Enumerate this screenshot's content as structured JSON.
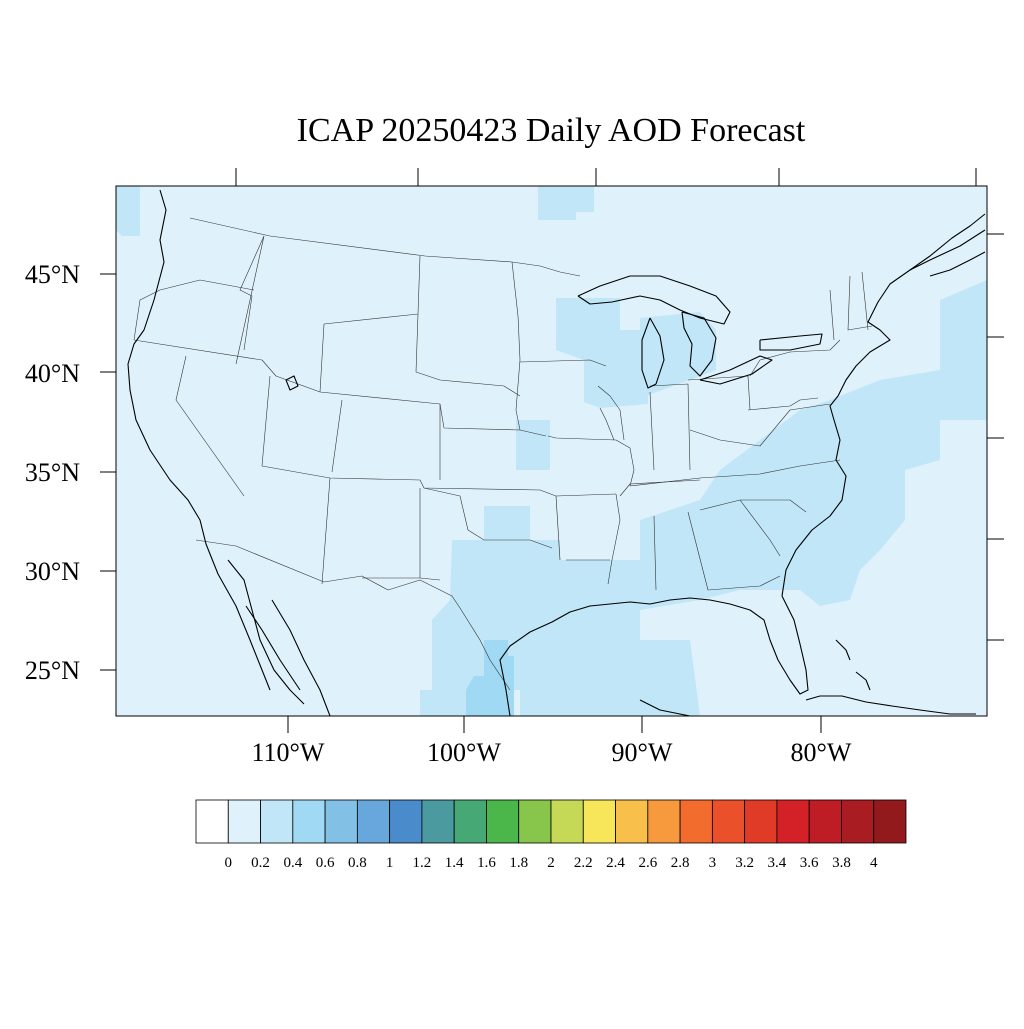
{
  "title": "ICAP 20250423 Daily AOD Forecast",
  "colors": {
    "background_sea": "#dff2fb",
    "aod_0_2_0_4": "#c0e6f7",
    "aod_0_4_0_6": "#9fd9f3"
  },
  "axes": {
    "lat_labels": [
      "45°N",
      "40°N",
      "35°N",
      "30°N",
      "25°N"
    ],
    "lon_labels": [
      "110°W",
      "100°W",
      "90°W",
      "80°W"
    ]
  },
  "colorbar": {
    "labels": [
      "0",
      "0.2",
      "0.4",
      "0.6",
      "0.8",
      "1",
      "1.2",
      "1.4",
      "1.6",
      "1.8",
      "2",
      "2.2",
      "2.4",
      "2.6",
      "2.8",
      "3",
      "3.2",
      "3.4",
      "3.6",
      "3.8",
      "4"
    ],
    "colors": [
      "#ffffff",
      "#dff2fb",
      "#c0e6f7",
      "#9fd9f3",
      "#82c0e6",
      "#68a7db",
      "#4a8ccb",
      "#4a9a9f",
      "#46a874",
      "#4bb74a",
      "#87c64a",
      "#c6d957",
      "#f7e55a",
      "#f8c04a",
      "#f79a3d",
      "#f26c2d",
      "#ea5029",
      "#e03b27",
      "#d42128",
      "#bf1d25",
      "#a81c22",
      "#921a1d"
    ]
  }
}
